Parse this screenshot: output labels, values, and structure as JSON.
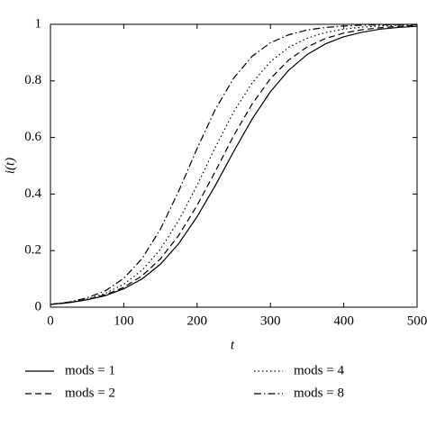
{
  "chart_data": {
    "type": "line",
    "xlabel": "t",
    "ylabel": "i(t)",
    "x": [
      0,
      25,
      50,
      75,
      100,
      125,
      150,
      175,
      200,
      225,
      250,
      275,
      300,
      325,
      350,
      375,
      400,
      425,
      450,
      475,
      500
    ],
    "series": [
      {
        "name": "mods = 1",
        "color": "#000000",
        "dash": "solid",
        "values": [
          0.01,
          0.016,
          0.026,
          0.041,
          0.065,
          0.1,
          0.152,
          0.225,
          0.32,
          0.431,
          0.551,
          0.665,
          0.762,
          0.838,
          0.893,
          0.931,
          0.956,
          0.972,
          0.983,
          0.989,
          0.993
        ]
      },
      {
        "name": "mods = 2",
        "color": "#000000",
        "dash": "dashed",
        "values": [
          0.01,
          0.016,
          0.027,
          0.044,
          0.07,
          0.111,
          0.171,
          0.254,
          0.36,
          0.481,
          0.607,
          0.718,
          0.808,
          0.874,
          0.92,
          0.95,
          0.969,
          0.981,
          0.988,
          0.993,
          0.996
        ]
      },
      {
        "name": "mods = 4",
        "color": "#000000",
        "dash": "dotted",
        "values": [
          0.01,
          0.017,
          0.029,
          0.049,
          0.081,
          0.131,
          0.205,
          0.307,
          0.431,
          0.566,
          0.691,
          0.793,
          0.868,
          0.919,
          0.951,
          0.971,
          0.983,
          0.99,
          0.994,
          0.997,
          0.998
        ]
      },
      {
        "name": "mods = 8",
        "color": "#000000",
        "dash": "dashdot",
        "values": [
          0.01,
          0.018,
          0.033,
          0.058,
          0.102,
          0.172,
          0.276,
          0.411,
          0.561,
          0.7,
          0.81,
          0.887,
          0.935,
          0.963,
          0.98,
          0.989,
          0.994,
          0.997,
          0.998,
          0.999,
          0.999
        ]
      }
    ],
    "xlim": [
      0,
      500
    ],
    "xticks": [
      0,
      100,
      200,
      300,
      400,
      500
    ],
    "ylim": [
      0,
      1
    ],
    "yticks": [
      0,
      0.2,
      0.4,
      0.6,
      0.8,
      1
    ],
    "grid": false,
    "legend": "bottom"
  }
}
